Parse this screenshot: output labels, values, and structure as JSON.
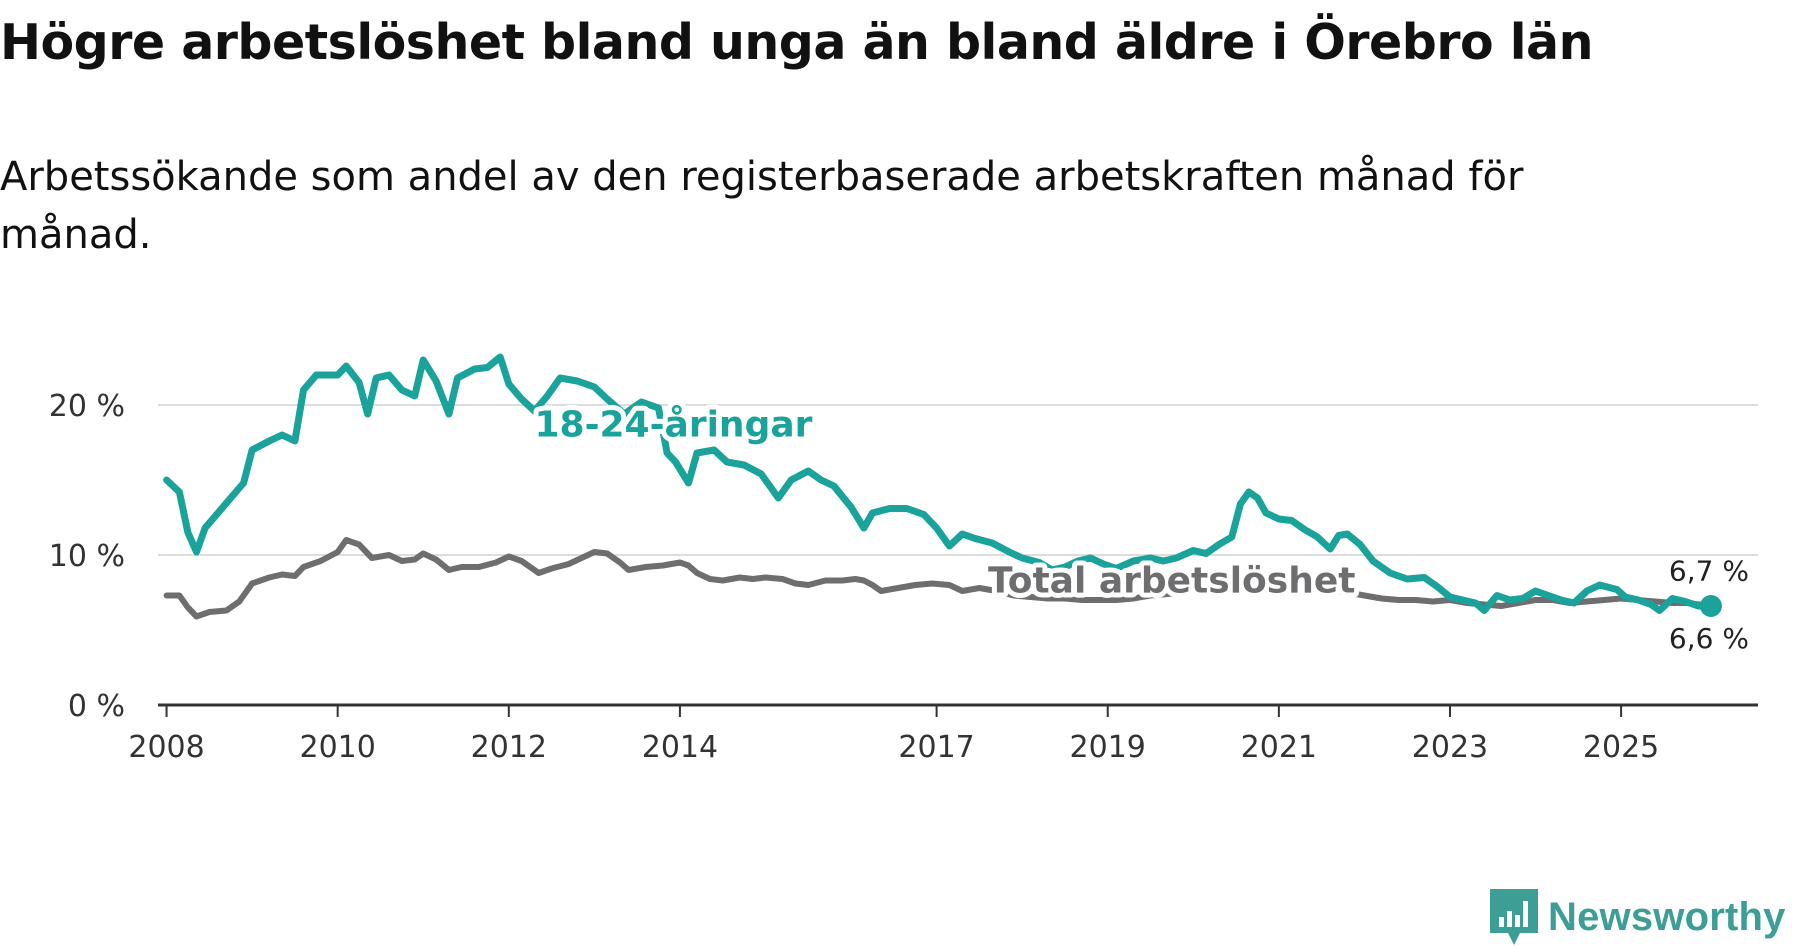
{
  "title": "Högre arbetslöshet bland unga än bland äldre i Örebro län",
  "subtitle": "Arbetssökande som andel av den registerbaserade arbetskraften månad för månad.",
  "logo": {
    "text": "Newsworthy",
    "icon": "bar-chart-icon"
  },
  "colors": {
    "youth": "#1aa39a",
    "total": "#6e6e70",
    "grid": "#dddddd",
    "axis": "#333333"
  },
  "chart_data": {
    "type": "line",
    "title": "Högre arbetslöshet bland unga än bland äldre i Örebro län",
    "xlabel": "",
    "ylabel": "",
    "xlim": [
      2007.9,
      2026.6
    ],
    "ylim": [
      0,
      25
    ],
    "y_ticks": [
      {
        "value": 0,
        "label": "0 %"
      },
      {
        "value": 10,
        "label": "10 %"
      },
      {
        "value": 20,
        "label": "20 %"
      }
    ],
    "x_ticks": [
      {
        "value": 2008,
        "label": "2008"
      },
      {
        "value": 2010,
        "label": "2010"
      },
      {
        "value": 2012,
        "label": "2012"
      },
      {
        "value": 2014,
        "label": "2014"
      },
      {
        "value": 2017,
        "label": "2017"
      },
      {
        "value": 2019,
        "label": "2019"
      },
      {
        "value": 2021,
        "label": "2021"
      },
      {
        "value": 2023,
        "label": "2023"
      },
      {
        "value": 2025,
        "label": "2025"
      }
    ],
    "grid": true,
    "series": [
      {
        "name": "18-24-åringar",
        "label": "18-24-åringar",
        "end_label": "6,6 %",
        "points": [
          [
            2008.0,
            15.0
          ],
          [
            2008.15,
            14.2
          ],
          [
            2008.25,
            11.5
          ],
          [
            2008.35,
            10.2
          ],
          [
            2008.45,
            11.8
          ],
          [
            2008.6,
            12.8
          ],
          [
            2008.75,
            13.8
          ],
          [
            2008.9,
            14.8
          ],
          [
            2009.0,
            17.0
          ],
          [
            2009.2,
            17.6
          ],
          [
            2009.35,
            18.0
          ],
          [
            2009.5,
            17.6
          ],
          [
            2009.6,
            21.0
          ],
          [
            2009.75,
            22.0
          ],
          [
            2010.0,
            22.0
          ],
          [
            2010.1,
            22.6
          ],
          [
            2010.25,
            21.5
          ],
          [
            2010.35,
            19.4
          ],
          [
            2010.45,
            21.8
          ],
          [
            2010.6,
            22.0
          ],
          [
            2010.75,
            21.0
          ],
          [
            2010.9,
            20.6
          ],
          [
            2011.0,
            23.0
          ],
          [
            2011.15,
            21.6
          ],
          [
            2011.3,
            19.4
          ],
          [
            2011.4,
            21.8
          ],
          [
            2011.6,
            22.4
          ],
          [
            2011.75,
            22.5
          ],
          [
            2011.9,
            23.2
          ],
          [
            2012.0,
            21.4
          ],
          [
            2012.15,
            20.4
          ],
          [
            2012.3,
            19.6
          ],
          [
            2012.45,
            20.6
          ],
          [
            2012.6,
            21.8
          ],
          [
            2012.8,
            21.6
          ],
          [
            2013.0,
            21.2
          ],
          [
            2013.15,
            20.4
          ],
          [
            2013.35,
            19.4
          ],
          [
            2013.55,
            20.2
          ],
          [
            2013.75,
            19.8
          ],
          [
            2013.85,
            16.8
          ],
          [
            2013.95,
            16.2
          ],
          [
            2014.1,
            14.8
          ],
          [
            2014.2,
            16.8
          ],
          [
            2014.4,
            17.0
          ],
          [
            2014.55,
            16.2
          ],
          [
            2014.75,
            16.0
          ],
          [
            2014.95,
            15.4
          ],
          [
            2015.05,
            14.6
          ],
          [
            2015.15,
            13.8
          ],
          [
            2015.3,
            15.0
          ],
          [
            2015.5,
            15.6
          ],
          [
            2015.65,
            15.0
          ],
          [
            2015.8,
            14.6
          ],
          [
            2016.0,
            13.2
          ],
          [
            2016.15,
            11.8
          ],
          [
            2016.25,
            12.8
          ],
          [
            2016.45,
            13.1
          ],
          [
            2016.65,
            13.1
          ],
          [
            2016.85,
            12.7
          ],
          [
            2017.0,
            11.8
          ],
          [
            2017.15,
            10.6
          ],
          [
            2017.3,
            11.4
          ],
          [
            2017.45,
            11.1
          ],
          [
            2017.65,
            10.8
          ],
          [
            2017.85,
            10.2
          ],
          [
            2018.0,
            9.8
          ],
          [
            2018.2,
            9.5
          ],
          [
            2018.35,
            9.0
          ],
          [
            2018.5,
            9.2
          ],
          [
            2018.65,
            9.6
          ],
          [
            2018.8,
            9.8
          ],
          [
            2018.95,
            9.4
          ],
          [
            2019.1,
            9.1
          ],
          [
            2019.3,
            9.6
          ],
          [
            2019.5,
            9.8
          ],
          [
            2019.65,
            9.6
          ],
          [
            2019.8,
            9.8
          ],
          [
            2020.0,
            10.3
          ],
          [
            2020.15,
            10.1
          ],
          [
            2020.3,
            10.7
          ],
          [
            2020.45,
            11.2
          ],
          [
            2020.55,
            13.4
          ],
          [
            2020.65,
            14.2
          ],
          [
            2020.75,
            13.8
          ],
          [
            2020.85,
            12.8
          ],
          [
            2021.0,
            12.4
          ],
          [
            2021.15,
            12.3
          ],
          [
            2021.3,
            11.7
          ],
          [
            2021.45,
            11.2
          ],
          [
            2021.6,
            10.4
          ],
          [
            2021.7,
            11.3
          ],
          [
            2021.8,
            11.4
          ],
          [
            2021.95,
            10.7
          ],
          [
            2022.1,
            9.6
          ],
          [
            2022.3,
            8.8
          ],
          [
            2022.5,
            8.4
          ],
          [
            2022.7,
            8.5
          ],
          [
            2022.85,
            7.9
          ],
          [
            2023.0,
            7.2
          ],
          [
            2023.15,
            7.0
          ],
          [
            2023.3,
            6.8
          ],
          [
            2023.4,
            6.3
          ],
          [
            2023.55,
            7.3
          ],
          [
            2023.7,
            7.0
          ],
          [
            2023.85,
            7.1
          ],
          [
            2024.0,
            7.6
          ],
          [
            2024.15,
            7.3
          ],
          [
            2024.3,
            7.0
          ],
          [
            2024.45,
            6.8
          ],
          [
            2024.6,
            7.6
          ],
          [
            2024.75,
            8.0
          ],
          [
            2024.95,
            7.7
          ],
          [
            2025.05,
            7.2
          ],
          [
            2025.2,
            7.0
          ],
          [
            2025.35,
            6.7
          ],
          [
            2025.45,
            6.3
          ],
          [
            2025.6,
            7.1
          ],
          [
            2025.75,
            6.9
          ],
          [
            2025.9,
            6.6
          ],
          [
            2026.05,
            6.6
          ]
        ]
      },
      {
        "name": "Total arbetslöshet",
        "label": "Total arbetslöshet",
        "end_label": "6,7 %",
        "points": [
          [
            2008.0,
            7.3
          ],
          [
            2008.15,
            7.3
          ],
          [
            2008.25,
            6.5
          ],
          [
            2008.35,
            5.9
          ],
          [
            2008.5,
            6.2
          ],
          [
            2008.7,
            6.3
          ],
          [
            2008.85,
            6.9
          ],
          [
            2009.0,
            8.1
          ],
          [
            2009.2,
            8.5
          ],
          [
            2009.35,
            8.7
          ],
          [
            2009.5,
            8.6
          ],
          [
            2009.6,
            9.2
          ],
          [
            2009.8,
            9.6
          ],
          [
            2010.0,
            10.2
          ],
          [
            2010.1,
            11.0
          ],
          [
            2010.25,
            10.7
          ],
          [
            2010.4,
            9.8
          ],
          [
            2010.6,
            10.0
          ],
          [
            2010.75,
            9.6
          ],
          [
            2010.9,
            9.7
          ],
          [
            2011.0,
            10.1
          ],
          [
            2011.15,
            9.7
          ],
          [
            2011.3,
            9.0
          ],
          [
            2011.45,
            9.2
          ],
          [
            2011.65,
            9.2
          ],
          [
            2011.85,
            9.5
          ],
          [
            2012.0,
            9.9
          ],
          [
            2012.15,
            9.6
          ],
          [
            2012.35,
            8.8
          ],
          [
            2012.5,
            9.1
          ],
          [
            2012.7,
            9.4
          ],
          [
            2012.85,
            9.8
          ],
          [
            2013.0,
            10.2
          ],
          [
            2013.15,
            10.1
          ],
          [
            2013.3,
            9.5
          ],
          [
            2013.4,
            9.0
          ],
          [
            2013.6,
            9.2
          ],
          [
            2013.8,
            9.3
          ],
          [
            2014.0,
            9.5
          ],
          [
            2014.1,
            9.3
          ],
          [
            2014.2,
            8.8
          ],
          [
            2014.35,
            8.4
          ],
          [
            2014.5,
            8.3
          ],
          [
            2014.7,
            8.5
          ],
          [
            2014.85,
            8.4
          ],
          [
            2015.0,
            8.5
          ],
          [
            2015.2,
            8.4
          ],
          [
            2015.35,
            8.1
          ],
          [
            2015.5,
            8.0
          ],
          [
            2015.7,
            8.3
          ],
          [
            2015.9,
            8.3
          ],
          [
            2016.05,
            8.4
          ],
          [
            2016.15,
            8.3
          ],
          [
            2016.25,
            8.0
          ],
          [
            2016.35,
            7.6
          ],
          [
            2016.55,
            7.8
          ],
          [
            2016.75,
            8.0
          ],
          [
            2016.95,
            8.1
          ],
          [
            2017.15,
            8.0
          ],
          [
            2017.3,
            7.6
          ],
          [
            2017.5,
            7.8
          ],
          [
            2017.7,
            7.6
          ],
          [
            2017.9,
            7.3
          ],
          [
            2018.1,
            7.2
          ],
          [
            2018.3,
            7.1
          ],
          [
            2018.5,
            7.1
          ],
          [
            2018.7,
            7.0
          ],
          [
            2018.9,
            7.0
          ],
          [
            2019.1,
            7.0
          ],
          [
            2019.3,
            7.1
          ],
          [
            2019.5,
            7.3
          ],
          [
            2019.7,
            7.4
          ],
          [
            2019.9,
            7.5
          ],
          [
            2020.1,
            7.7
          ],
          [
            2020.3,
            7.9
          ],
          [
            2020.5,
            8.1
          ],
          [
            2020.65,
            8.2
          ],
          [
            2020.8,
            8.3
          ],
          [
            2021.0,
            8.2
          ],
          [
            2021.2,
            8.0
          ],
          [
            2021.4,
            7.8
          ],
          [
            2021.6,
            7.6
          ],
          [
            2021.8,
            7.5
          ],
          [
            2022.0,
            7.3
          ],
          [
            2022.2,
            7.1
          ],
          [
            2022.4,
            7.0
          ],
          [
            2022.6,
            7.0
          ],
          [
            2022.8,
            6.9
          ],
          [
            2023.0,
            7.0
          ],
          [
            2023.2,
            6.8
          ],
          [
            2023.4,
            6.7
          ],
          [
            2023.6,
            6.6
          ],
          [
            2023.8,
            6.8
          ],
          [
            2024.0,
            7.0
          ],
          [
            2024.2,
            7.0
          ],
          [
            2024.4,
            6.8
          ],
          [
            2024.6,
            6.9
          ],
          [
            2024.8,
            7.0
          ],
          [
            2025.0,
            7.1
          ],
          [
            2025.2,
            7.0
          ],
          [
            2025.4,
            6.9
          ],
          [
            2025.6,
            6.8
          ],
          [
            2025.8,
            6.8
          ],
          [
            2025.9,
            6.7
          ],
          [
            2026.05,
            6.7
          ]
        ]
      }
    ]
  }
}
